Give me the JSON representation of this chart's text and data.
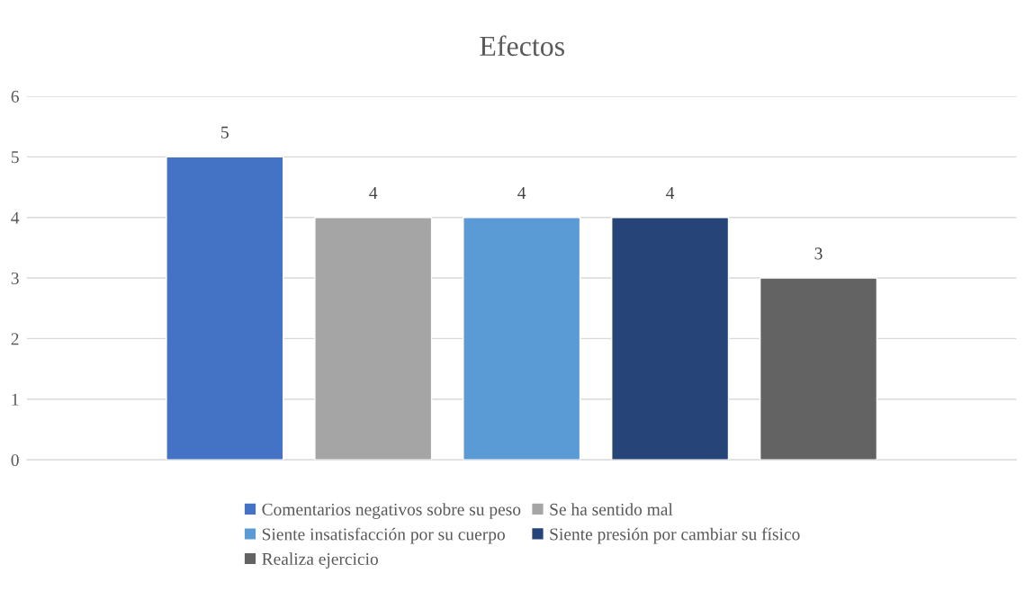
{
  "chart_data": {
    "type": "bar",
    "title": "Efectos",
    "categories": [
      null
    ],
    "series": [
      {
        "name": "Comentarios negativos sobre su peso",
        "color": "#4472c4",
        "values": [
          5
        ]
      },
      {
        "name": "Se ha sentido mal",
        "color": "#a5a5a5",
        "values": [
          4
        ]
      },
      {
        "name": "Siente insatisfacción por su cuerpo",
        "color": "#5b9bd5",
        "values": [
          4
        ]
      },
      {
        "name": "Siente presión por cambiar su físico",
        "color": "#264478",
        "values": [
          4
        ]
      },
      {
        "name": "Realiza ejercicio",
        "color": "#636363",
        "values": [
          3
        ]
      }
    ],
    "ylim": [
      0,
      6
    ],
    "yticks": [
      0,
      1,
      2,
      3,
      4,
      5,
      6
    ],
    "grid": "y",
    "legend": "bottom",
    "data_labels": true
  }
}
